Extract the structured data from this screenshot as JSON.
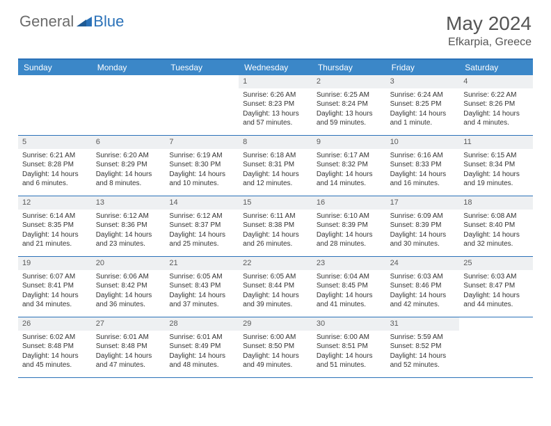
{
  "brand": {
    "part1": "General",
    "part2": "Blue"
  },
  "title": "May 2024",
  "location": "Efkarpia, Greece",
  "colors": {
    "header_bg": "#3b87c8",
    "border": "#2a71b8",
    "daynum_bg": "#eef0f2",
    "text": "#333333",
    "logo_gray": "#6b6b6b",
    "logo_blue": "#2a71b8"
  },
  "dow": [
    "Sunday",
    "Monday",
    "Tuesday",
    "Wednesday",
    "Thursday",
    "Friday",
    "Saturday"
  ],
  "weeks": [
    [
      {
        "n": "",
        "sr": "",
        "ss": "",
        "dl": ""
      },
      {
        "n": "",
        "sr": "",
        "ss": "",
        "dl": ""
      },
      {
        "n": "",
        "sr": "",
        "ss": "",
        "dl": ""
      },
      {
        "n": "1",
        "sr": "Sunrise: 6:26 AM",
        "ss": "Sunset: 8:23 PM",
        "dl": "Daylight: 13 hours and 57 minutes."
      },
      {
        "n": "2",
        "sr": "Sunrise: 6:25 AM",
        "ss": "Sunset: 8:24 PM",
        "dl": "Daylight: 13 hours and 59 minutes."
      },
      {
        "n": "3",
        "sr": "Sunrise: 6:24 AM",
        "ss": "Sunset: 8:25 PM",
        "dl": "Daylight: 14 hours and 1 minute."
      },
      {
        "n": "4",
        "sr": "Sunrise: 6:22 AM",
        "ss": "Sunset: 8:26 PM",
        "dl": "Daylight: 14 hours and 4 minutes."
      }
    ],
    [
      {
        "n": "5",
        "sr": "Sunrise: 6:21 AM",
        "ss": "Sunset: 8:28 PM",
        "dl": "Daylight: 14 hours and 6 minutes."
      },
      {
        "n": "6",
        "sr": "Sunrise: 6:20 AM",
        "ss": "Sunset: 8:29 PM",
        "dl": "Daylight: 14 hours and 8 minutes."
      },
      {
        "n": "7",
        "sr": "Sunrise: 6:19 AM",
        "ss": "Sunset: 8:30 PM",
        "dl": "Daylight: 14 hours and 10 minutes."
      },
      {
        "n": "8",
        "sr": "Sunrise: 6:18 AM",
        "ss": "Sunset: 8:31 PM",
        "dl": "Daylight: 14 hours and 12 minutes."
      },
      {
        "n": "9",
        "sr": "Sunrise: 6:17 AM",
        "ss": "Sunset: 8:32 PM",
        "dl": "Daylight: 14 hours and 14 minutes."
      },
      {
        "n": "10",
        "sr": "Sunrise: 6:16 AM",
        "ss": "Sunset: 8:33 PM",
        "dl": "Daylight: 14 hours and 16 minutes."
      },
      {
        "n": "11",
        "sr": "Sunrise: 6:15 AM",
        "ss": "Sunset: 8:34 PM",
        "dl": "Daylight: 14 hours and 19 minutes."
      }
    ],
    [
      {
        "n": "12",
        "sr": "Sunrise: 6:14 AM",
        "ss": "Sunset: 8:35 PM",
        "dl": "Daylight: 14 hours and 21 minutes."
      },
      {
        "n": "13",
        "sr": "Sunrise: 6:12 AM",
        "ss": "Sunset: 8:36 PM",
        "dl": "Daylight: 14 hours and 23 minutes."
      },
      {
        "n": "14",
        "sr": "Sunrise: 6:12 AM",
        "ss": "Sunset: 8:37 PM",
        "dl": "Daylight: 14 hours and 25 minutes."
      },
      {
        "n": "15",
        "sr": "Sunrise: 6:11 AM",
        "ss": "Sunset: 8:38 PM",
        "dl": "Daylight: 14 hours and 26 minutes."
      },
      {
        "n": "16",
        "sr": "Sunrise: 6:10 AM",
        "ss": "Sunset: 8:39 PM",
        "dl": "Daylight: 14 hours and 28 minutes."
      },
      {
        "n": "17",
        "sr": "Sunrise: 6:09 AM",
        "ss": "Sunset: 8:39 PM",
        "dl": "Daylight: 14 hours and 30 minutes."
      },
      {
        "n": "18",
        "sr": "Sunrise: 6:08 AM",
        "ss": "Sunset: 8:40 PM",
        "dl": "Daylight: 14 hours and 32 minutes."
      }
    ],
    [
      {
        "n": "19",
        "sr": "Sunrise: 6:07 AM",
        "ss": "Sunset: 8:41 PM",
        "dl": "Daylight: 14 hours and 34 minutes."
      },
      {
        "n": "20",
        "sr": "Sunrise: 6:06 AM",
        "ss": "Sunset: 8:42 PM",
        "dl": "Daylight: 14 hours and 36 minutes."
      },
      {
        "n": "21",
        "sr": "Sunrise: 6:05 AM",
        "ss": "Sunset: 8:43 PM",
        "dl": "Daylight: 14 hours and 37 minutes."
      },
      {
        "n": "22",
        "sr": "Sunrise: 6:05 AM",
        "ss": "Sunset: 8:44 PM",
        "dl": "Daylight: 14 hours and 39 minutes."
      },
      {
        "n": "23",
        "sr": "Sunrise: 6:04 AM",
        "ss": "Sunset: 8:45 PM",
        "dl": "Daylight: 14 hours and 41 minutes."
      },
      {
        "n": "24",
        "sr": "Sunrise: 6:03 AM",
        "ss": "Sunset: 8:46 PM",
        "dl": "Daylight: 14 hours and 42 minutes."
      },
      {
        "n": "25",
        "sr": "Sunrise: 6:03 AM",
        "ss": "Sunset: 8:47 PM",
        "dl": "Daylight: 14 hours and 44 minutes."
      }
    ],
    [
      {
        "n": "26",
        "sr": "Sunrise: 6:02 AM",
        "ss": "Sunset: 8:48 PM",
        "dl": "Daylight: 14 hours and 45 minutes."
      },
      {
        "n": "27",
        "sr": "Sunrise: 6:01 AM",
        "ss": "Sunset: 8:48 PM",
        "dl": "Daylight: 14 hours and 47 minutes."
      },
      {
        "n": "28",
        "sr": "Sunrise: 6:01 AM",
        "ss": "Sunset: 8:49 PM",
        "dl": "Daylight: 14 hours and 48 minutes."
      },
      {
        "n": "29",
        "sr": "Sunrise: 6:00 AM",
        "ss": "Sunset: 8:50 PM",
        "dl": "Daylight: 14 hours and 49 minutes."
      },
      {
        "n": "30",
        "sr": "Sunrise: 6:00 AM",
        "ss": "Sunset: 8:51 PM",
        "dl": "Daylight: 14 hours and 51 minutes."
      },
      {
        "n": "31",
        "sr": "Sunrise: 5:59 AM",
        "ss": "Sunset: 8:52 PM",
        "dl": "Daylight: 14 hours and 52 minutes."
      },
      {
        "n": "",
        "sr": "",
        "ss": "",
        "dl": ""
      }
    ]
  ]
}
